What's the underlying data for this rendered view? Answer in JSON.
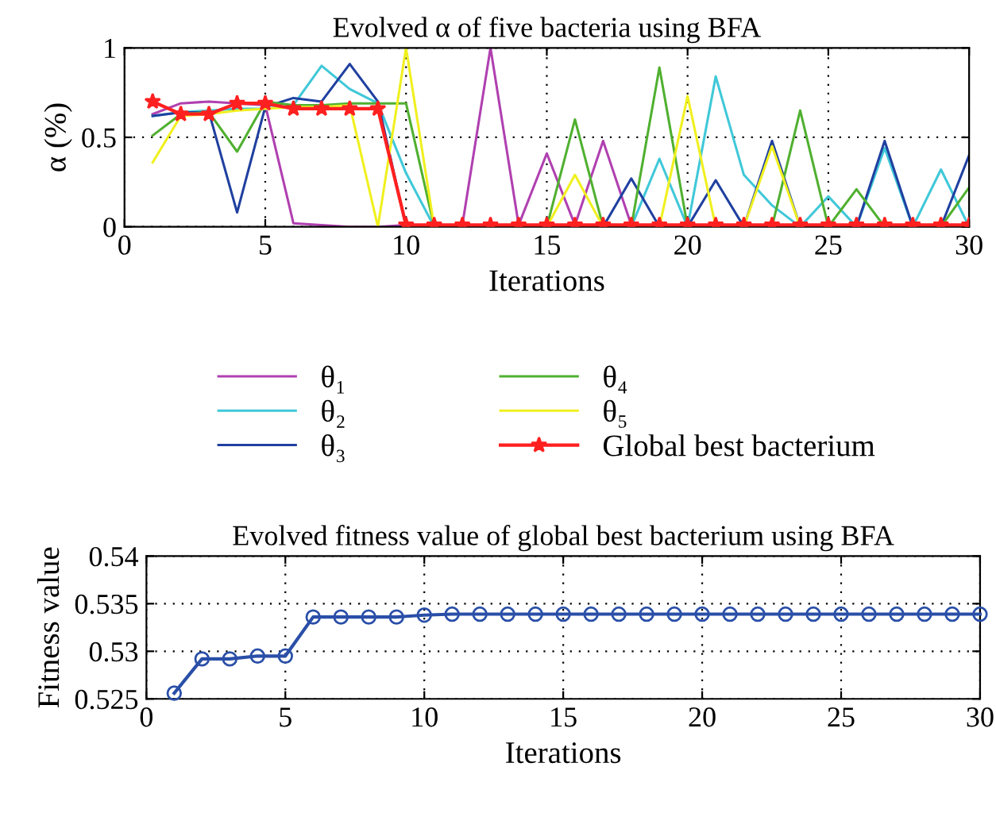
{
  "chart_data": [
    {
      "type": "line",
      "title": "Evolved α of five bacteria using BFA",
      "xlabel": "Iterations",
      "ylabel": "α (%)",
      "x": [
        1,
        2,
        3,
        4,
        5,
        6,
        7,
        8,
        9,
        10,
        11,
        12,
        13,
        14,
        15,
        16,
        17,
        18,
        19,
        20,
        21,
        22,
        23,
        24,
        25,
        26,
        27,
        28,
        29,
        30
      ],
      "xlim": [
        0,
        30
      ],
      "xticks": [
        0,
        5,
        10,
        15,
        20,
        25,
        30
      ],
      "ylim": [
        0,
        1
      ],
      "yticks": [
        0,
        0.5,
        1
      ],
      "grid": true,
      "line_style": "solid",
      "legend": "bottom",
      "series": [
        {
          "name": "θ₁",
          "color": "#b040b0",
          "marker": "none",
          "values": [
            0.63,
            0.69,
            0.7,
            0.69,
            0.68,
            0.02,
            0.01,
            0,
            0,
            0.01,
            0.01,
            0.01,
            1.0,
            0.01,
            0.41,
            0.01,
            0.48,
            0.01,
            0,
            null,
            null,
            null,
            null,
            null,
            null,
            null,
            null,
            null,
            null,
            null
          ]
        },
        {
          "name": "θ₂",
          "color": "#40c8d8",
          "marker": "none",
          "values": [
            0.62,
            0.64,
            0.65,
            0.66,
            0.66,
            0.68,
            0.9,
            0.77,
            0.69,
            0.3,
            0,
            0,
            0,
            0,
            0,
            0,
            0,
            0,
            0.38,
            0,
            0.84,
            0.29,
            0.12,
            0,
            0.17,
            0,
            0.44,
            0,
            0.32,
            0
          ]
        },
        {
          "name": "θ₃",
          "color": "#2040a0",
          "marker": "none",
          "values": [
            0.62,
            0.64,
            0.64,
            0.08,
            0.67,
            0.72,
            0.7,
            0.91,
            0.7,
            0,
            0,
            0,
            0,
            0,
            0,
            0,
            0,
            0.27,
            0,
            0,
            0.26,
            0,
            0.48,
            0,
            0,
            0,
            0.48,
            0,
            0,
            0.4
          ]
        },
        {
          "name": "θ₄",
          "color": "#50b030",
          "marker": "none",
          "values": [
            0.51,
            0.63,
            0.64,
            0.42,
            0.7,
            0.68,
            0.68,
            0.69,
            0.69,
            0.69,
            0,
            0,
            0,
            0,
            0,
            0.6,
            0,
            0,
            0.89,
            0,
            0,
            0,
            0,
            0.65,
            0,
            0.21,
            0,
            0,
            0,
            0.22
          ]
        },
        {
          "name": "θ₅",
          "color": "#f0f020",
          "marker": "none",
          "values": [
            0.36,
            0.62,
            0.63,
            0.65,
            0.66,
            0.67,
            0.67,
            0.68,
            0,
            1.0,
            0,
            0,
            0,
            0,
            0,
            0.29,
            0,
            0,
            0,
            0.73,
            0,
            0,
            0.45,
            0,
            0,
            null,
            null,
            null,
            null,
            null
          ]
        },
        {
          "name": "Global best bacterium",
          "color": "#ff2020",
          "marker": "star",
          "values": [
            0.7,
            0.63,
            0.63,
            0.69,
            0.69,
            0.66,
            0.66,
            0.66,
            0.66,
            0.01,
            0.01,
            0.01,
            0.01,
            0.01,
            0.01,
            0.01,
            0.01,
            0.01,
            0.01,
            0.01,
            0.01,
            0.01,
            0.01,
            0.01,
            0.01,
            0.01,
            0.01,
            0.01,
            0.01,
            0.01
          ]
        }
      ]
    },
    {
      "type": "line",
      "title": "Evolved fitness value of global best bacterium using BFA",
      "xlabel": "Iterations",
      "ylabel": "Fitness value",
      "x": [
        1,
        2,
        3,
        4,
        5,
        6,
        7,
        8,
        9,
        10,
        11,
        12,
        13,
        14,
        15,
        16,
        17,
        18,
        19,
        20,
        21,
        22,
        23,
        24,
        25,
        26,
        27,
        28,
        29,
        30
      ],
      "xlim": [
        0,
        30
      ],
      "xticks": [
        0,
        5,
        10,
        15,
        20,
        25,
        30
      ],
      "ylim": [
        0.525,
        0.54
      ],
      "yticks": [
        0.525,
        0.53,
        0.535,
        0.54
      ],
      "grid": true,
      "line_style": "solid",
      "legend": false,
      "series": [
        {
          "color": "#2a4fa8",
          "marker": "circle",
          "values": [
            0.5256,
            0.5292,
            0.5292,
            0.5295,
            0.5295,
            0.5336,
            0.5336,
            0.5336,
            0.5336,
            0.5338,
            0.5339,
            0.5339,
            0.5339,
            0.5339,
            0.5339,
            0.5339,
            0.5339,
            0.5339,
            0.5339,
            0.5339,
            0.5339,
            0.5339,
            0.5339,
            0.5339,
            0.5339,
            0.5339,
            0.5339,
            0.5339,
            0.5339,
            0.5339
          ]
        }
      ]
    }
  ]
}
